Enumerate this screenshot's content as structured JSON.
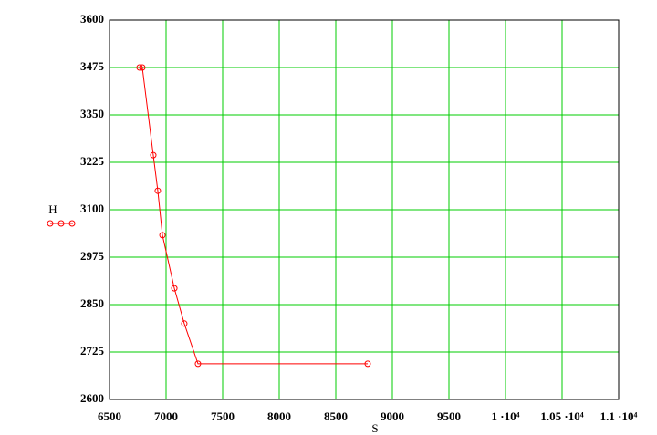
{
  "chart_data": {
    "type": "line",
    "x_label": "S",
    "y_label": "H",
    "x": [
      6766,
      6790,
      6887,
      6927,
      6968,
      7073,
      7161,
      7282,
      8782
    ],
    "series": [
      {
        "name": "H",
        "color": "#ff0000",
        "values": [
          3475,
          3475,
          3244,
          3150,
          3033,
          2893,
          2800,
          2694,
          2694
        ]
      }
    ],
    "xlim": [
      6500,
      11000
    ],
    "xticks": [
      6500,
      7000,
      7500,
      8000,
      8500,
      9000,
      9500,
      {
        "value": 10000,
        "label": "1 ·10⁴"
      },
      {
        "value": 10500,
        "label": "1.05 ·10⁴"
      },
      {
        "value": 11000,
        "label": "1.1 ·10⁴"
      }
    ],
    "ylim": [
      2600,
      3600
    ],
    "yticks": [
      2600,
      2725,
      2850,
      2975,
      3100,
      3225,
      3350,
      3475,
      3600
    ],
    "grid": true,
    "grid_color": "#00cc00",
    "markers": "circle"
  }
}
